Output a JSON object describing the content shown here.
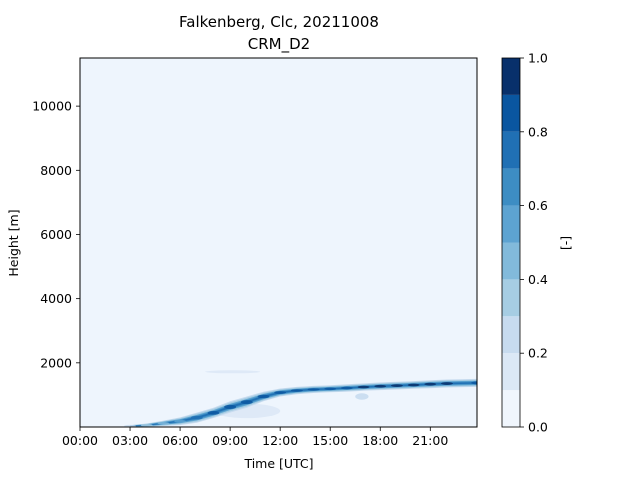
{
  "chart_data": {
    "type": "heatmap",
    "title": "Falkenberg, Clc, 20211008",
    "subtitle": "CRM_D2",
    "xlabel": "Time [UTC]",
    "ylabel": "Height [m]",
    "xlim": [
      0,
      23.8
    ],
    "ylim": [
      0,
      11500
    ],
    "x_ticks": [
      {
        "label": "00:00",
        "value": 0
      },
      {
        "label": "03:00",
        "value": 3
      },
      {
        "label": "06:00",
        "value": 6
      },
      {
        "label": "09:00",
        "value": 9
      },
      {
        "label": "12:00",
        "value": 12
      },
      {
        "label": "15:00",
        "value": 15
      },
      {
        "label": "18:00",
        "value": 18
      },
      {
        "label": "21:00",
        "value": 21
      }
    ],
    "y_ticks": [
      {
        "label": "2000",
        "value": 2000
      },
      {
        "label": "4000",
        "value": 4000
      },
      {
        "label": "6000",
        "value": 6000
      },
      {
        "label": "8000",
        "value": 8000
      },
      {
        "label": "10000",
        "value": 10000
      }
    ],
    "colorbar": {
      "label": "[-]",
      "range": [
        0,
        1
      ],
      "levels": [
        0.0,
        0.1,
        0.2,
        0.3,
        0.4,
        0.5,
        0.6,
        0.7,
        0.8,
        0.9,
        1.0
      ],
      "ticks": [
        {
          "label": "0.0",
          "value": 0.0
        },
        {
          "label": "0.2",
          "value": 0.2
        },
        {
          "label": "0.4",
          "value": 0.4
        },
        {
          "label": "0.6",
          "value": 0.6
        },
        {
          "label": "0.8",
          "value": 0.8
        },
        {
          "label": "1.0",
          "value": 1.0
        }
      ],
      "colors": [
        "#f0f6fd",
        "#dbe8f6",
        "#c7dbef",
        "#a6cde3",
        "#82badb",
        "#5da3d1",
        "#3d8dc3",
        "#2070b4",
        "#0a56a0",
        "#08306b"
      ]
    },
    "background_color": "#eef5fd",
    "cloud_layer": {
      "description_units": "time in hours UTC, height in m, cloud fraction 0-1",
      "points": [
        {
          "t": 3.0,
          "base": 0,
          "top": 60,
          "value": 0.2
        },
        {
          "t": 4.0,
          "base": 0,
          "top": 110,
          "value": 0.3
        },
        {
          "t": 5.0,
          "base": 30,
          "top": 200,
          "value": 0.4
        },
        {
          "t": 6.0,
          "base": 60,
          "top": 300,
          "value": 0.55
        },
        {
          "t": 7.0,
          "base": 130,
          "top": 450,
          "value": 0.75
        },
        {
          "t": 8.0,
          "base": 280,
          "top": 600,
          "value": 0.8
        },
        {
          "t": 9.0,
          "base": 450,
          "top": 800,
          "value": 0.85
        },
        {
          "t": 10.0,
          "base": 600,
          "top": 950,
          "value": 0.85
        },
        {
          "t": 11.0,
          "base": 800,
          "top": 1100,
          "value": 0.8
        },
        {
          "t": 12.0,
          "base": 950,
          "top": 1200,
          "value": 0.85
        },
        {
          "t": 13.0,
          "base": 1020,
          "top": 1250,
          "value": 0.85
        },
        {
          "t": 14.0,
          "base": 1060,
          "top": 1280,
          "value": 0.8
        },
        {
          "t": 15.0,
          "base": 1080,
          "top": 1300,
          "value": 0.85
        },
        {
          "t": 16.0,
          "base": 1100,
          "top": 1330,
          "value": 0.85
        },
        {
          "t": 17.0,
          "base": 1130,
          "top": 1360,
          "value": 0.9
        },
        {
          "t": 18.0,
          "base": 1150,
          "top": 1390,
          "value": 0.9
        },
        {
          "t": 19.0,
          "base": 1170,
          "top": 1410,
          "value": 0.9
        },
        {
          "t": 20.0,
          "base": 1190,
          "top": 1430,
          "value": 0.9
        },
        {
          "t": 21.0,
          "base": 1210,
          "top": 1460,
          "value": 0.9
        },
        {
          "t": 22.0,
          "base": 1230,
          "top": 1480,
          "value": 0.9
        },
        {
          "t": 23.8,
          "base": 1250,
          "top": 1500,
          "value": 0.85
        }
      ]
    },
    "faint_patches": [
      {
        "t_start": 7.5,
        "t_end": 10.8,
        "height": 1720,
        "thickness": 70,
        "value": 0.15
      },
      {
        "t_start": 8.0,
        "t_end": 12.0,
        "height": 500,
        "thickness": 450,
        "value": 0.15
      },
      {
        "t_start": 16.5,
        "t_end": 17.3,
        "height": 950,
        "thickness": 200,
        "value": 0.2
      }
    ]
  }
}
